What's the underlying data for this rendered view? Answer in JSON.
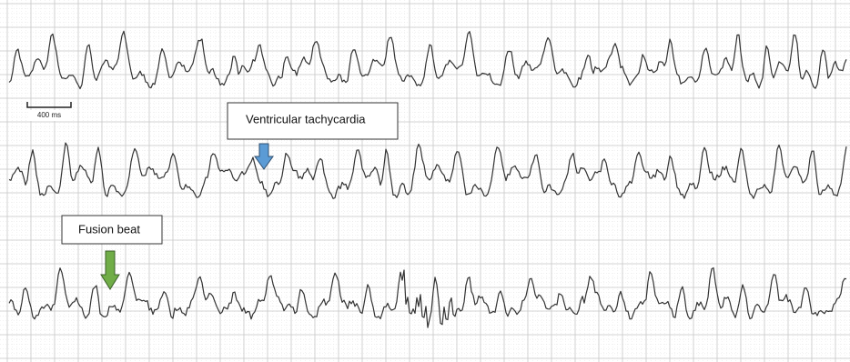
{
  "scale_bar": {
    "label": "400 ms"
  },
  "annotations": [
    {
      "label": "Ventricular tachycardia"
    },
    {
      "label": "Fusion beat"
    }
  ]
}
